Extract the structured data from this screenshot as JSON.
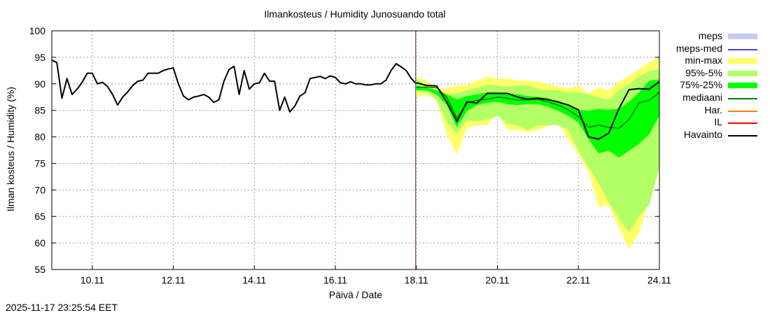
{
  "title": "Ilmankosteus / Humidity  Junosuando total",
  "timestamp": "2025-11-17 23:25:54 EET",
  "chart_data": {
    "type": "line",
    "title": "Ilmankosteus / Humidity  Junosuando total",
    "xlabel": "Päivä / Date",
    "ylabel": "Ilman kosteus / Humidity (%)",
    "xlim": [
      "2025-11-09T00:00",
      "2025-11-24T00:00"
    ],
    "ylim": [
      55,
      100
    ],
    "grid": true,
    "legend_position": "right-outside",
    "yticks": [
      "55",
      "60",
      "65",
      "70",
      "75",
      "80",
      "85",
      "90",
      "95",
      "100"
    ],
    "xticks": [
      {
        "label": "10.11",
        "date": "2025-11-10T00:00"
      },
      {
        "label": "12.11",
        "date": "2025-11-12T00:00"
      },
      {
        "label": "14.11",
        "date": "2025-11-14T00:00"
      },
      {
        "label": "16.11",
        "date": "2025-11-16T00:00"
      },
      {
        "label": "18.11",
        "date": "2025-11-18T00:00"
      },
      {
        "label": "20.11",
        "date": "2025-11-20T00:00"
      },
      {
        "label": "22.11",
        "date": "2025-11-22T00:00"
      },
      {
        "label": "24.11",
        "date": "2025-11-24T00:00"
      }
    ],
    "forecast_start_marker": "2025-11-18T00:00",
    "legend": [
      {
        "name": "meps",
        "color": "#c8c8f8",
        "kind": "band"
      },
      {
        "name": "meps-med",
        "color": "#4040e0",
        "kind": "line"
      },
      {
        "name": "min-max",
        "color": "#ffff66",
        "kind": "band"
      },
      {
        "name": "95%-5%",
        "color": "#b3ff66",
        "kind": "band"
      },
      {
        "name": "75%-25%",
        "color": "#00ff00",
        "kind": "band"
      },
      {
        "name": "mediaani",
        "color": "#007a00",
        "kind": "line"
      },
      {
        "name": "Har.",
        "color": "#ff8000",
        "kind": "line"
      },
      {
        "name": "IL",
        "color": "#ff0000",
        "kind": "line"
      },
      {
        "name": "Havainto",
        "color": "#000000",
        "kind": "line"
      }
    ],
    "observed": {
      "name": "Havainto",
      "x": [
        "2025-11-09T00:00",
        "2025-11-09T03:00",
        "2025-11-09T06:00",
        "2025-11-09T09:00",
        "2025-11-09T12:00",
        "2025-11-09T15:00",
        "2025-11-09T18:00",
        "2025-11-09T21:00",
        "2025-11-10T00:00",
        "2025-11-10T03:00",
        "2025-11-10T06:00",
        "2025-11-10T09:00",
        "2025-11-10T12:00",
        "2025-11-10T15:00",
        "2025-11-10T18:00",
        "2025-11-10T21:00",
        "2025-11-11T00:00",
        "2025-11-11T03:00",
        "2025-11-11T06:00",
        "2025-11-11T09:00",
        "2025-11-11T12:00",
        "2025-11-11T15:00",
        "2025-11-11T18:00",
        "2025-11-11T21:00",
        "2025-11-12T00:00",
        "2025-11-12T03:00",
        "2025-11-12T06:00",
        "2025-11-12T09:00",
        "2025-11-12T12:00",
        "2025-11-12T15:00",
        "2025-11-12T18:00",
        "2025-11-12T21:00",
        "2025-11-13T00:00",
        "2025-11-13T03:00",
        "2025-11-13T06:00",
        "2025-11-13T09:00",
        "2025-11-13T12:00",
        "2025-11-13T15:00",
        "2025-11-13T18:00",
        "2025-11-13T21:00",
        "2025-11-14T00:00",
        "2025-11-14T03:00",
        "2025-11-14T06:00",
        "2025-11-14T09:00",
        "2025-11-14T12:00",
        "2025-11-14T15:00",
        "2025-11-14T18:00",
        "2025-11-14T21:00",
        "2025-11-15T00:00",
        "2025-11-15T03:00",
        "2025-11-15T06:00",
        "2025-11-15T09:00",
        "2025-11-15T12:00",
        "2025-11-15T15:00",
        "2025-11-15T18:00",
        "2025-11-15T21:00",
        "2025-11-16T00:00",
        "2025-11-16T03:00",
        "2025-11-16T06:00",
        "2025-11-16T09:00",
        "2025-11-16T12:00",
        "2025-11-16T15:00",
        "2025-11-16T18:00",
        "2025-11-16T21:00",
        "2025-11-17T00:00",
        "2025-11-17T03:00",
        "2025-11-17T06:00",
        "2025-11-17T09:00",
        "2025-11-17T12:00",
        "2025-11-17T15:00",
        "2025-11-17T18:00",
        "2025-11-17T21:00",
        "2025-11-18T00:00"
      ],
      "y": [
        94.5,
        94,
        87.3,
        91,
        88,
        89,
        90.3,
        92,
        92,
        90,
        90.3,
        89.5,
        88,
        86,
        87.5,
        88.5,
        89.7,
        90.5,
        90.7,
        92,
        92,
        92,
        92.5,
        92.8,
        93,
        90,
        87.7,
        87,
        87.5,
        87.7,
        88,
        87.5,
        86.5,
        87,
        90.5,
        92.7,
        93.3,
        88,
        92.5,
        89,
        90,
        90.2,
        92,
        90.5,
        90.5,
        85,
        87.5,
        84.7,
        85.8,
        87.7,
        88.3,
        91,
        91.2,
        91.4,
        91,
        91.5,
        91.2,
        90.2,
        90,
        90.4,
        90,
        90,
        89.8,
        89.8,
        90,
        90,
        90.7,
        92.5,
        93.8,
        93.2,
        92.5,
        91,
        90
      ]
    },
    "forecast": {
      "x": [
        "2025-11-18T00:00",
        "2025-11-18T06:00",
        "2025-11-18T12:00",
        "2025-11-18T18:00",
        "2025-11-19T00:00",
        "2025-11-19T06:00",
        "2025-11-19T12:00",
        "2025-11-19T18:00",
        "2025-11-20T00:00",
        "2025-11-20T06:00",
        "2025-11-20T12:00",
        "2025-11-20T18:00",
        "2025-11-21T00:00",
        "2025-11-21T06:00",
        "2025-11-21T12:00",
        "2025-11-21T18:00",
        "2025-11-22T00:00",
        "2025-11-22T06:00",
        "2025-11-22T12:00",
        "2025-11-22T18:00",
        "2025-11-23T00:00",
        "2025-11-23T06:00",
        "2025-11-23T12:00",
        "2025-11-23T18:00",
        "2025-11-24T00:00"
      ],
      "minmax_upper": [
        91.3,
        90.6,
        89.3,
        89.1,
        89.7,
        89.7,
        90.6,
        91.3,
        91,
        91,
        90.6,
        90.6,
        90.4,
        89.9,
        89.5,
        89.1,
        89.7,
        88.2,
        89.3,
        88.8,
        90.4,
        91.5,
        92.8,
        94.1,
        95
      ],
      "minmax_lower": [
        87.5,
        88,
        86.9,
        80.5,
        76.7,
        81.8,
        82.2,
        82.2,
        84.4,
        81.3,
        81.3,
        80.9,
        81.3,
        82,
        82.7,
        79.6,
        76.7,
        73.4,
        66.8,
        67.2,
        62.8,
        58.9,
        62,
        68.1,
        73.9
      ],
      "p95": [
        91,
        89.7,
        88.8,
        88,
        88.2,
        88.8,
        89.3,
        89.9,
        89.7,
        89.5,
        89.7,
        89.7,
        89.1,
        88.8,
        88.8,
        88.4,
        88.4,
        88,
        87.5,
        86.9,
        88.8,
        89.9,
        91.5,
        92.4,
        92.8
      ],
      "p5": [
        88.4,
        88.4,
        87.1,
        82.7,
        80.5,
        83.1,
        82.9,
        83.3,
        84,
        82.4,
        82.2,
        81.3,
        82.2,
        82.2,
        82.2,
        81.3,
        77.4,
        74.3,
        71.2,
        67.7,
        64.6,
        62,
        65,
        67.2,
        74.3
      ],
      "p75": [
        89.7,
        89.3,
        88.8,
        88,
        87.1,
        87.7,
        88,
        88.4,
        88.4,
        88.2,
        88,
        87.7,
        87.5,
        87.3,
        86.6,
        85.7,
        85.1,
        84.9,
        85.3,
        85.1,
        85.3,
        86.6,
        88.4,
        90.6,
        90.8
      ],
      "p25": [
        88.8,
        88.8,
        88,
        86,
        81.8,
        84.9,
        86,
        86.4,
        86.6,
        86.2,
        86,
        86.2,
        86.2,
        85.7,
        84.9,
        84,
        82.7,
        79.6,
        76.9,
        77.4,
        76.1,
        77.4,
        78.7,
        80.5,
        84
      ],
      "median": [
        89.3,
        89.4,
        89.3,
        87.5,
        83.5,
        86.4,
        86.9,
        87.1,
        87.5,
        87.3,
        86.9,
        87,
        87.1,
        86.6,
        86,
        85.1,
        83.8,
        81.8,
        82.2,
        81.8,
        81.6,
        83.3,
        86.4,
        86.9,
        88.4
      ],
      "havainto": [
        90.2,
        89.7,
        89.6,
        86.6,
        82.9,
        86.6,
        86.4,
        88.2,
        88.2,
        88.2,
        87.5,
        87.1,
        87.3,
        87,
        86.6,
        86,
        85.1,
        80,
        79.6,
        80.7,
        85.3,
        88.9,
        89.1,
        89,
        90.4
      ]
    }
  }
}
